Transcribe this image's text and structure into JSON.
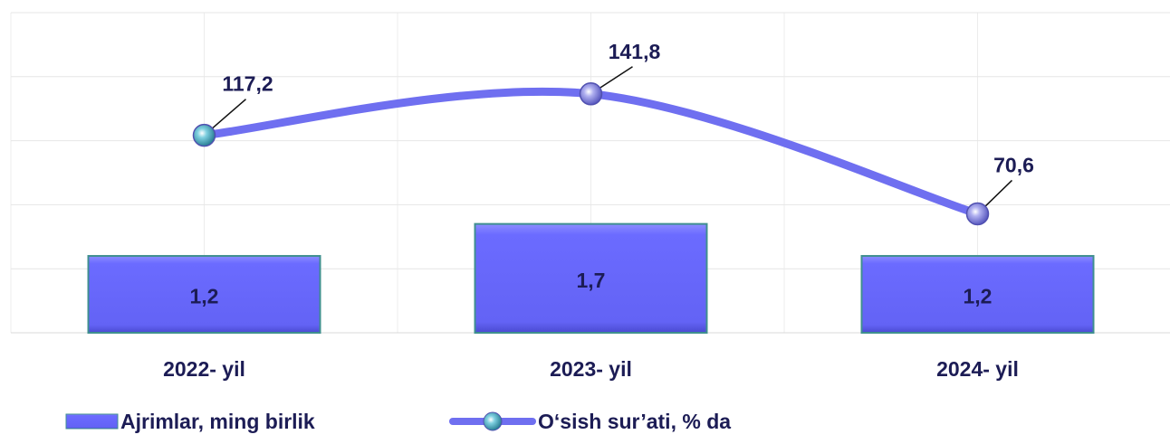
{
  "chart_data": {
    "type": "bar-line",
    "categories": [
      "2022- yil",
      "2023- yil",
      "2024- yil"
    ],
    "series": [
      {
        "name": "Ajrimlar, ming birlik",
        "type": "bar",
        "color": "#6b6bff",
        "values": [
          1.2,
          1.7,
          1.2
        ],
        "value_labels": [
          "1,2",
          "1,7",
          "1,2"
        ]
      },
      {
        "name": "O‘sish sur’ati, % da",
        "type": "line",
        "axis": "y2",
        "color": "#6f6ff0",
        "values": [
          117.2,
          141.8,
          70.6
        ],
        "value_labels": [
          "117,2",
          "141,8",
          "70,6"
        ]
      }
    ],
    "ylim": [
      0,
      5
    ],
    "yticks": [
      0,
      1,
      2,
      3,
      4,
      5
    ],
    "y2lim": [
      0,
      190
    ],
    "grid": true,
    "legend": "bottom"
  }
}
